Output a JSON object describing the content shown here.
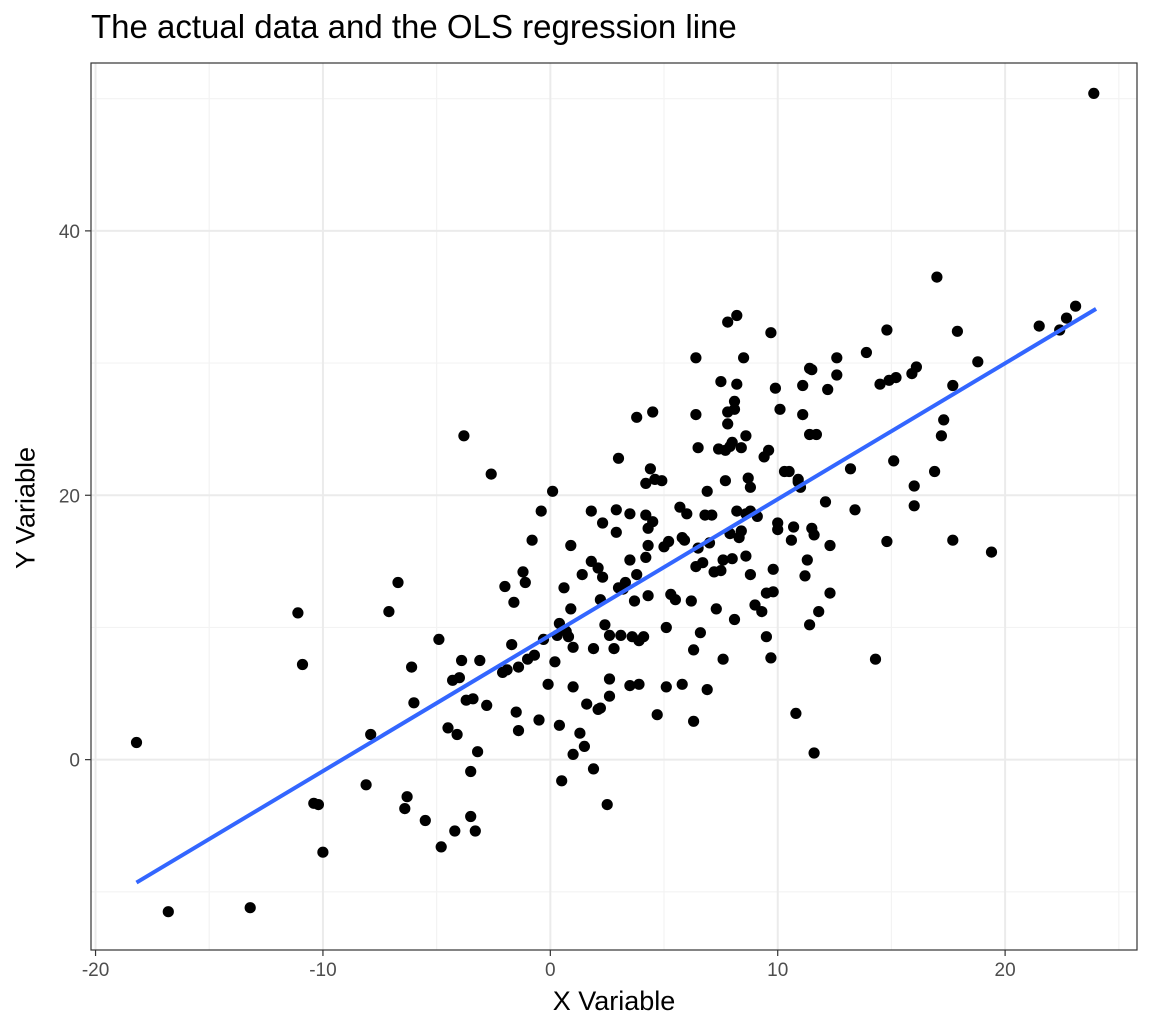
{
  "chart_data": {
    "type": "scatter",
    "title": "The actual data and the OLS regression line",
    "xlabel": "X Variable",
    "ylabel": "Y Variable",
    "xlim": [
      -20.2,
      25.8
    ],
    "ylim": [
      -14.4,
      52.7
    ],
    "x_ticks": [
      -20,
      -10,
      0,
      10,
      20
    ],
    "y_ticks": [
      0,
      20,
      40
    ],
    "x_tick_labels": [
      "-20",
      "-10",
      "0",
      "10",
      "20"
    ],
    "y_tick_labels": [
      "0",
      "20",
      "40"
    ],
    "grid": true,
    "legend": "none",
    "colors": {
      "points": "#000000",
      "line": "#3366ff",
      "grid_major": "#ebebeb",
      "grid_minor": "#f3f3f3",
      "border": "#333333"
    },
    "regression_line": {
      "x": [
        -18.2,
        24.0
      ],
      "y": [
        -9.3,
        34.1
      ]
    },
    "points": [
      [
        -18.2,
        1.3
      ],
      [
        -16.8,
        -11.5
      ],
      [
        -13.2,
        -11.2
      ],
      [
        -11.1,
        11.1
      ],
      [
        -10.9,
        7.2
      ],
      [
        -10.4,
        -3.3
      ],
      [
        -10.2,
        -3.4
      ],
      [
        -10.0,
        -7.0
      ],
      [
        -8.1,
        -1.9
      ],
      [
        -7.9,
        1.9
      ],
      [
        -7.1,
        11.2
      ],
      [
        -6.7,
        13.4
      ],
      [
        -6.4,
        -3.7
      ],
      [
        -6.3,
        -2.8
      ],
      [
        -6.1,
        7.0
      ],
      [
        -6.0,
        4.3
      ],
      [
        -5.5,
        -4.6
      ],
      [
        -4.9,
        9.1
      ],
      [
        -4.8,
        -6.6
      ],
      [
        -4.5,
        2.4
      ],
      [
        -4.3,
        6.0
      ],
      [
        -4.2,
        -5.4
      ],
      [
        -4.1,
        1.9
      ],
      [
        -4.0,
        6.2
      ],
      [
        -3.9,
        7.5
      ],
      [
        -3.8,
        24.5
      ],
      [
        -3.7,
        4.5
      ],
      [
        -3.5,
        -4.3
      ],
      [
        -3.5,
        -0.9
      ],
      [
        -3.4,
        4.6
      ],
      [
        -3.3,
        -5.4
      ],
      [
        -3.2,
        0.6
      ],
      [
        -3.1,
        7.5
      ],
      [
        -2.8,
        4.1
      ],
      [
        -2.6,
        21.6
      ],
      [
        -2.1,
        6.6
      ],
      [
        -2.0,
        13.1
      ],
      [
        -1.9,
        6.8
      ],
      [
        -1.7,
        8.7
      ],
      [
        -1.6,
        11.9
      ],
      [
        -1.5,
        3.6
      ],
      [
        -1.4,
        7.0
      ],
      [
        -1.4,
        2.2
      ],
      [
        -1.2,
        14.2
      ],
      [
        -1.1,
        13.4
      ],
      [
        -1.0,
        7.6
      ],
      [
        -0.8,
        16.6
      ],
      [
        -0.7,
        7.9
      ],
      [
        -0.5,
        3.0
      ],
      [
        -0.4,
        18.8
      ],
      [
        -0.3,
        9.1
      ],
      [
        -0.1,
        5.7
      ],
      [
        0.1,
        20.3
      ],
      [
        0.2,
        7.4
      ],
      [
        0.3,
        9.4
      ],
      [
        0.4,
        2.6
      ],
      [
        0.4,
        10.3
      ],
      [
        0.5,
        -1.6
      ],
      [
        0.6,
        13.0
      ],
      [
        0.7,
        9.7
      ],
      [
        0.8,
        9.3
      ],
      [
        0.9,
        16.2
      ],
      [
        0.9,
        11.4
      ],
      [
        1.0,
        8.5
      ],
      [
        1.0,
        0.4
      ],
      [
        1.0,
        5.5
      ],
      [
        1.3,
        2.0
      ],
      [
        1.4,
        14.0
      ],
      [
        1.5,
        1.0
      ],
      [
        1.6,
        4.2
      ],
      [
        1.8,
        15.0
      ],
      [
        1.8,
        18.8
      ],
      [
        1.9,
        8.4
      ],
      [
        1.9,
        -0.7
      ],
      [
        2.1,
        3.8
      ],
      [
        2.1,
        14.5
      ],
      [
        2.2,
        12.1
      ],
      [
        2.2,
        3.9
      ],
      [
        2.3,
        17.9
      ],
      [
        2.3,
        13.8
      ],
      [
        2.4,
        10.2
      ],
      [
        2.5,
        -3.4
      ],
      [
        2.6,
        9.4
      ],
      [
        2.6,
        4.8
      ],
      [
        2.6,
        6.1
      ],
      [
        2.8,
        8.4
      ],
      [
        2.9,
        18.9
      ],
      [
        2.9,
        17.2
      ],
      [
        3.0,
        22.8
      ],
      [
        3.0,
        13.0
      ],
      [
        3.1,
        9.4
      ],
      [
        3.2,
        12.9
      ],
      [
        3.3,
        13.4
      ],
      [
        3.5,
        5.6
      ],
      [
        3.5,
        18.6
      ],
      [
        3.5,
        15.1
      ],
      [
        3.6,
        9.3
      ],
      [
        3.7,
        12.0
      ],
      [
        3.8,
        14.0
      ],
      [
        3.8,
        25.9
      ],
      [
        3.9,
        5.7
      ],
      [
        3.9,
        9.0
      ],
      [
        4.1,
        9.3
      ],
      [
        4.2,
        18.5
      ],
      [
        4.2,
        15.3
      ],
      [
        4.2,
        20.9
      ],
      [
        4.3,
        16.2
      ],
      [
        4.3,
        12.4
      ],
      [
        4.3,
        17.5
      ],
      [
        4.4,
        22.0
      ],
      [
        4.5,
        26.3
      ],
      [
        4.5,
        18.0
      ],
      [
        4.6,
        21.2
      ],
      [
        4.7,
        3.4
      ],
      [
        4.9,
        21.1
      ],
      [
        5.0,
        16.1
      ],
      [
        5.1,
        10.0
      ],
      [
        5.1,
        5.5
      ],
      [
        5.2,
        16.5
      ],
      [
        5.3,
        12.5
      ],
      [
        5.5,
        12.1
      ],
      [
        5.7,
        19.1
      ],
      [
        5.8,
        16.8
      ],
      [
        5.8,
        5.7
      ],
      [
        5.9,
        16.6
      ],
      [
        6.0,
        18.6
      ],
      [
        6.2,
        12.0
      ],
      [
        6.3,
        2.9
      ],
      [
        6.3,
        8.3
      ],
      [
        6.4,
        30.4
      ],
      [
        6.4,
        26.1
      ],
      [
        6.4,
        14.6
      ],
      [
        6.5,
        23.6
      ],
      [
        6.5,
        16.0
      ],
      [
        6.6,
        9.6
      ],
      [
        6.7,
        14.9
      ],
      [
        6.8,
        18.5
      ],
      [
        6.9,
        20.3
      ],
      [
        6.9,
        5.3
      ],
      [
        7.0,
        16.4
      ],
      [
        7.1,
        18.5
      ],
      [
        7.2,
        14.2
      ],
      [
        7.3,
        11.4
      ],
      [
        7.4,
        23.5
      ],
      [
        7.5,
        28.6
      ],
      [
        7.5,
        14.3
      ],
      [
        7.6,
        15.1
      ],
      [
        7.6,
        7.6
      ],
      [
        7.7,
        23.4
      ],
      [
        7.7,
        21.1
      ],
      [
        7.8,
        33.1
      ],
      [
        7.8,
        25.4
      ],
      [
        7.8,
        26.3
      ],
      [
        7.9,
        17.1
      ],
      [
        7.9,
        23.7
      ],
      [
        8.0,
        24.0
      ],
      [
        8.0,
        15.2
      ],
      [
        8.1,
        27.1
      ],
      [
        8.1,
        26.5
      ],
      [
        8.1,
        10.6
      ],
      [
        8.2,
        33.6
      ],
      [
        8.2,
        28.4
      ],
      [
        8.2,
        18.8
      ],
      [
        8.3,
        16.8
      ],
      [
        8.4,
        17.3
      ],
      [
        8.4,
        23.6
      ],
      [
        8.5,
        30.4
      ],
      [
        8.6,
        24.5
      ],
      [
        8.6,
        18.6
      ],
      [
        8.6,
        15.4
      ],
      [
        8.7,
        21.3
      ],
      [
        8.8,
        18.8
      ],
      [
        8.8,
        14.0
      ],
      [
        8.8,
        20.6
      ],
      [
        9.0,
        11.7
      ],
      [
        9.1,
        18.4
      ],
      [
        9.3,
        11.2
      ],
      [
        9.4,
        22.9
      ],
      [
        9.5,
        12.6
      ],
      [
        9.5,
        9.3
      ],
      [
        9.6,
        23.4
      ],
      [
        9.7,
        32.3
      ],
      [
        9.7,
        7.7
      ],
      [
        9.8,
        14.4
      ],
      [
        9.8,
        12.7
      ],
      [
        9.9,
        28.1
      ],
      [
        10.0,
        17.4
      ],
      [
        10.0,
        17.9
      ],
      [
        10.1,
        26.5
      ],
      [
        10.3,
        21.8
      ],
      [
        10.5,
        21.8
      ],
      [
        10.6,
        16.6
      ],
      [
        10.7,
        17.6
      ],
      [
        10.8,
        3.5
      ],
      [
        10.9,
        21.0
      ],
      [
        10.9,
        21.2
      ],
      [
        11.0,
        20.6
      ],
      [
        11.1,
        28.3
      ],
      [
        11.1,
        26.1
      ],
      [
        11.2,
        13.9
      ],
      [
        11.3,
        15.1
      ],
      [
        11.4,
        29.6
      ],
      [
        11.4,
        24.6
      ],
      [
        11.4,
        10.2
      ],
      [
        11.5,
        29.5
      ],
      [
        11.5,
        17.5
      ],
      [
        11.6,
        17.0
      ],
      [
        11.6,
        0.5
      ],
      [
        11.7,
        24.6
      ],
      [
        11.8,
        11.2
      ],
      [
        12.1,
        19.5
      ],
      [
        12.2,
        28.0
      ],
      [
        12.3,
        16.2
      ],
      [
        12.3,
        12.6
      ],
      [
        12.6,
        30.4
      ],
      [
        12.6,
        29.1
      ],
      [
        13.2,
        22.0
      ],
      [
        13.4,
        18.9
      ],
      [
        13.9,
        30.8
      ],
      [
        14.3,
        7.6
      ],
      [
        14.5,
        28.4
      ],
      [
        14.8,
        32.5
      ],
      [
        14.8,
        16.5
      ],
      [
        14.9,
        28.7
      ],
      [
        15.1,
        22.6
      ],
      [
        15.2,
        28.9
      ],
      [
        15.9,
        29.2
      ],
      [
        16.0,
        20.7
      ],
      [
        16.0,
        19.2
      ],
      [
        16.1,
        29.7
      ],
      [
        16.9,
        21.8
      ],
      [
        17.0,
        36.5
      ],
      [
        17.2,
        24.5
      ],
      [
        17.3,
        25.7
      ],
      [
        17.7,
        16.6
      ],
      [
        17.7,
        28.3
      ],
      [
        17.9,
        32.4
      ],
      [
        18.8,
        30.1
      ],
      [
        19.4,
        15.7
      ],
      [
        21.5,
        32.8
      ],
      [
        22.4,
        32.5
      ],
      [
        22.7,
        33.4
      ],
      [
        23.1,
        34.3
      ],
      [
        23.9,
        50.4
      ]
    ]
  }
}
